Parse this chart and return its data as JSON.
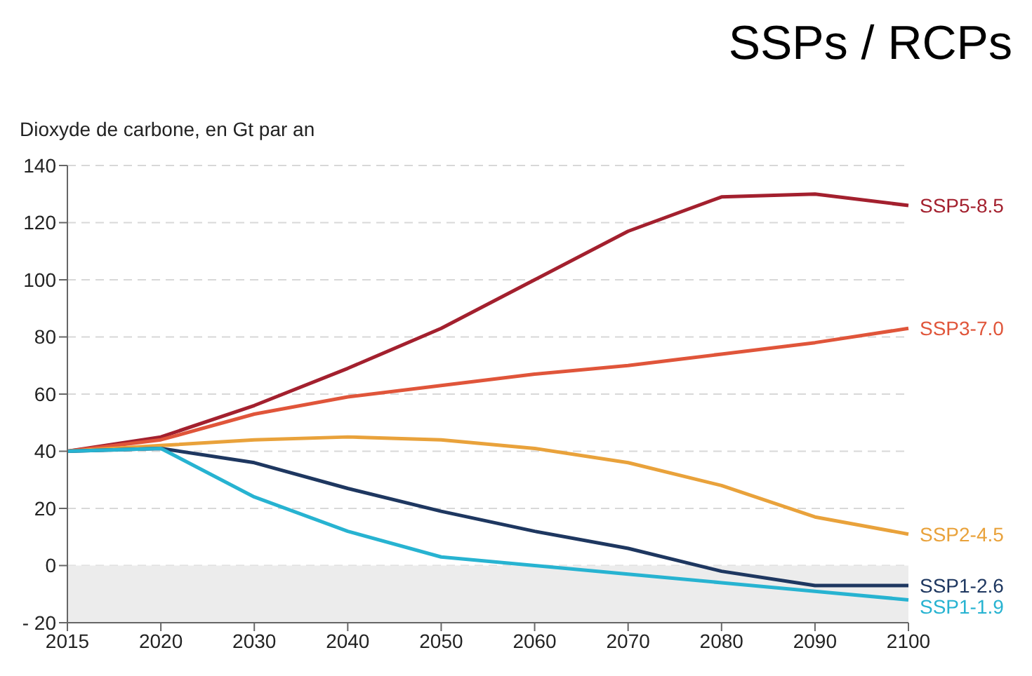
{
  "chart_data": {
    "type": "line",
    "title": "SSPs / RCPs",
    "ylabel": "Dioxyde de carbone, en Gt par an",
    "categories": [
      "2015",
      "2020",
      "2030",
      "2040",
      "2050",
      "2060",
      "2070",
      "2080",
      "2090",
      "2100"
    ],
    "series": [
      {
        "name": "SSP5-8.5",
        "color": "#a3202e",
        "values": [
          40,
          45,
          56,
          69,
          83,
          100,
          117,
          129,
          130,
          126
        ]
      },
      {
        "name": "SSP3-7.0",
        "color": "#e0553a",
        "values": [
          40,
          44,
          53,
          59,
          63,
          67,
          70,
          74,
          78,
          83
        ]
      },
      {
        "name": "SSP2-4.5",
        "color": "#e9a23b",
        "values": [
          40,
          42,
          44,
          45,
          44,
          41,
          36,
          28,
          17,
          11
        ]
      },
      {
        "name": "SSP1-2.6",
        "color": "#1e3760",
        "values": [
          40,
          41,
          36,
          27,
          19,
          12,
          6,
          -2,
          -7,
          -7
        ]
      },
      {
        "name": "SSP1-1.9",
        "color": "#27b3d1",
        "values": [
          40,
          41,
          24,
          12,
          3,
          0,
          -3,
          -6,
          -9,
          -12
        ]
      }
    ],
    "ylim": [
      -20,
      140
    ],
    "yticks": [
      {
        "value": -20,
        "label": "- 20"
      },
      0,
      20,
      40,
      60,
      80,
      100,
      120,
      140
    ],
    "bands": [
      {
        "axis": "y",
        "from": -20,
        "to": 0,
        "color": "#ececec"
      }
    ],
    "grid": "y",
    "legend": false,
    "marker": "none",
    "line_style": "solid"
  }
}
